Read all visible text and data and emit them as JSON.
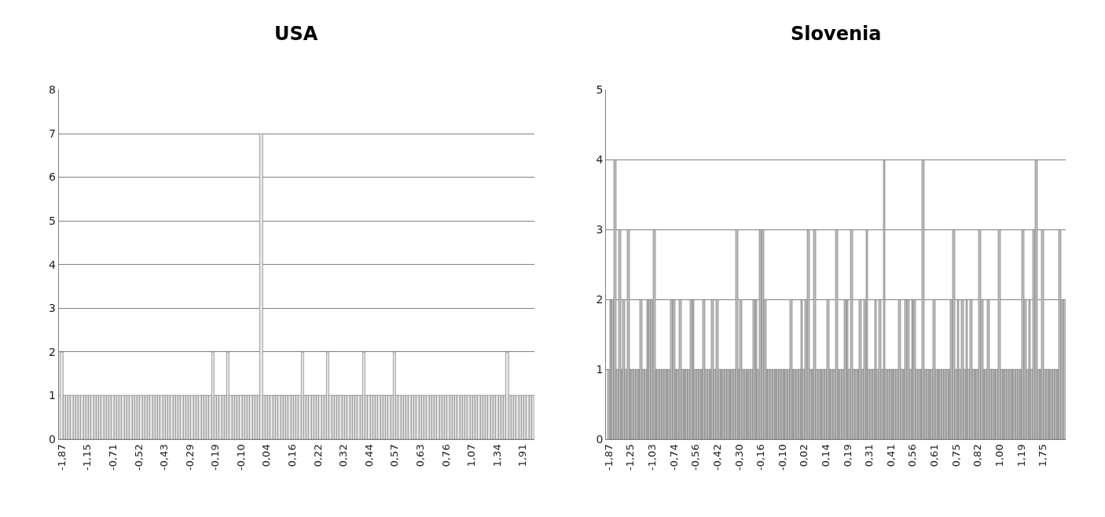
{
  "chart_data": [
    {
      "type": "bar",
      "title": "USA",
      "color": "#e6e6e6",
      "ylim": [
        0,
        8
      ],
      "yticks": [
        0,
        1,
        2,
        3,
        4,
        5,
        6,
        7,
        8
      ],
      "grid": "y",
      "categories": [
        "-1,87",
        null,
        null,
        null,
        null,
        null,
        null,
        null,
        null,
        null,
        "-1,15",
        null,
        null,
        null,
        null,
        null,
        null,
        null,
        null,
        null,
        "-0,71",
        null,
        null,
        null,
        null,
        null,
        null,
        null,
        null,
        null,
        "-0,52",
        null,
        null,
        null,
        null,
        null,
        null,
        null,
        null,
        null,
        "-0,43",
        null,
        null,
        null,
        null,
        null,
        null,
        null,
        null,
        null,
        "-0,29",
        null,
        null,
        null,
        null,
        null,
        null,
        null,
        null,
        null,
        "-0,19",
        null,
        null,
        null,
        null,
        null,
        null,
        null,
        null,
        null,
        "-0,10",
        null,
        null,
        null,
        null,
        null,
        null,
        null,
        null,
        null,
        "0,04",
        null,
        null,
        null,
        null,
        null,
        null,
        null,
        null,
        null,
        "0,16",
        null,
        null,
        null,
        null,
        null,
        null,
        null,
        null,
        null,
        "0,22",
        null,
        null,
        null,
        null,
        null,
        null,
        null,
        null,
        null,
        "0,32",
        null,
        null,
        null,
        null,
        null,
        null,
        null,
        null,
        null,
        "0,44",
        null,
        null,
        null,
        null,
        null,
        null,
        null,
        null,
        null,
        "0,57",
        null,
        null,
        null,
        null,
        null,
        null,
        null,
        null,
        null,
        "0,63",
        null,
        null,
        null,
        null,
        null,
        null,
        null,
        null,
        null,
        "0,76",
        null,
        null,
        null,
        null,
        null,
        null,
        null,
        null,
        null,
        "1,07",
        null,
        null,
        null,
        null,
        null,
        null,
        null,
        null,
        null,
        "1,34",
        null,
        null,
        null,
        null,
        null,
        null,
        null,
        null,
        null,
        "1,91",
        null,
        null,
        null,
        null
      ],
      "values": [
        2,
        1,
        1,
        1,
        1,
        1,
        1,
        1,
        1,
        1,
        1,
        1,
        1,
        1,
        1,
        1,
        1,
        1,
        1,
        1,
        1,
        1,
        1,
        1,
        1,
        1,
        1,
        1,
        1,
        1,
        1,
        1,
        1,
        1,
        1,
        1,
        1,
        1,
        1,
        1,
        1,
        1,
        1,
        1,
        1,
        1,
        1,
        1,
        1,
        1,
        1,
        1,
        1,
        1,
        1,
        1,
        1,
        1,
        1,
        2,
        1,
        1,
        1,
        1,
        1,
        2,
        1,
        1,
        1,
        1,
        1,
        1,
        1,
        1,
        1,
        1,
        1,
        1,
        7,
        1,
        1,
        1,
        1,
        1,
        1,
        1,
        1,
        1,
        1,
        1,
        1,
        1,
        1,
        1,
        2,
        1,
        1,
        1,
        1,
        1,
        1,
        1,
        1,
        1,
        2,
        1,
        1,
        1,
        1,
        1,
        1,
        1,
        1,
        1,
        1,
        1,
        1,
        1,
        2,
        1,
        1,
        1,
        1,
        1,
        1,
        1,
        1,
        1,
        1,
        1,
        2,
        1,
        1,
        1,
        1,
        1,
        1,
        1,
        1,
        1,
        1,
        1,
        1,
        1,
        1,
        1,
        1,
        1,
        1,
        1,
        1,
        1,
        1,
        1,
        1,
        1,
        1,
        1,
        1,
        1,
        1,
        1,
        1,
        1,
        1,
        1,
        1,
        1,
        1,
        1,
        1,
        1,
        1,
        1,
        2,
        1,
        1,
        1,
        1,
        1,
        1,
        1,
        1,
        1,
        1
      ]
    },
    {
      "type": "bar",
      "title": "Slovenia",
      "color": "#bfbfbf",
      "ylim": [
        0,
        5
      ],
      "yticks": [
        0,
        1,
        2,
        3,
        4,
        5
      ],
      "grid": "y",
      "categories": [
        "-1,87",
        null,
        null,
        null,
        null,
        null,
        null,
        null,
        null,
        null,
        "-1,25",
        null,
        null,
        null,
        null,
        null,
        null,
        null,
        null,
        null,
        "-1,03",
        null,
        null,
        null,
        null,
        null,
        null,
        null,
        null,
        null,
        "-0,74",
        null,
        null,
        null,
        null,
        null,
        null,
        null,
        null,
        null,
        "-0,56",
        null,
        null,
        null,
        null,
        null,
        null,
        null,
        null,
        null,
        "-0,42",
        null,
        null,
        null,
        null,
        null,
        null,
        null,
        null,
        null,
        "-0,30",
        null,
        null,
        null,
        null,
        null,
        null,
        null,
        null,
        null,
        "-0,16",
        null,
        null,
        null,
        null,
        null,
        null,
        null,
        null,
        null,
        "-0,10",
        null,
        null,
        null,
        null,
        null,
        null,
        null,
        null,
        null,
        "0,02",
        null,
        null,
        null,
        null,
        null,
        null,
        null,
        null,
        null,
        "0,14",
        null,
        null,
        null,
        null,
        null,
        null,
        null,
        null,
        null,
        "0,19",
        null,
        null,
        null,
        null,
        null,
        null,
        null,
        null,
        null,
        "0,31",
        null,
        null,
        null,
        null,
        null,
        null,
        null,
        null,
        null,
        "0,41",
        null,
        null,
        null,
        null,
        null,
        null,
        null,
        null,
        null,
        "0,56",
        null,
        null,
        null,
        null,
        null,
        null,
        null,
        null,
        null,
        "0,61",
        null,
        null,
        null,
        null,
        null,
        null,
        null,
        null,
        null,
        "0,75",
        null,
        null,
        null,
        null,
        null,
        null,
        null,
        null,
        null,
        "0,82",
        null,
        null,
        null,
        null,
        null,
        null,
        null,
        null,
        null,
        "1,00",
        null,
        null,
        null,
        null,
        null,
        null,
        null,
        null,
        null,
        "1,19",
        null,
        null,
        null,
        null,
        null,
        null,
        null,
        null,
        null,
        "1,75",
        null,
        null,
        null,
        null,
        null,
        null,
        null,
        null,
        null,
        null
      ],
      "values": [
        1,
        2,
        2,
        4,
        1,
        3,
        1,
        2,
        1,
        3,
        1,
        1,
        1,
        1,
        1,
        2,
        1,
        1,
        2,
        2,
        2,
        3,
        1,
        1,
        1,
        1,
        1,
        1,
        1,
        2,
        2,
        1,
        1,
        2,
        1,
        1,
        1,
        1,
        2,
        2,
        1,
        1,
        1,
        1,
        2,
        1,
        1,
        1,
        2,
        1,
        2,
        1,
        1,
        1,
        1,
        1,
        1,
        1,
        1,
        3,
        1,
        2,
        1,
        1,
        1,
        1,
        1,
        2,
        2,
        1,
        3,
        3,
        2,
        1,
        1,
        1,
        1,
        1,
        1,
        1,
        1,
        1,
        1,
        1,
        2,
        1,
        1,
        1,
        1,
        2,
        1,
        2,
        3,
        1,
        1,
        3,
        1,
        1,
        1,
        1,
        1,
        2,
        1,
        1,
        1,
        3,
        1,
        1,
        1,
        2,
        2,
        1,
        3,
        1,
        1,
        1,
        2,
        1,
        2,
        3,
        1,
        1,
        1,
        2,
        1,
        2,
        1,
        4,
        1,
        1,
        1,
        1,
        1,
        1,
        2,
        1,
        1,
        2,
        2,
        1,
        2,
        2,
        1,
        1,
        1,
        4,
        1,
        1,
        1,
        1,
        2,
        1,
        1,
        1,
        1,
        1,
        1,
        1,
        2,
        3,
        1,
        2,
        1,
        2,
        1,
        2,
        1,
        2,
        1,
        1,
        1,
        3,
        2,
        1,
        1,
        2,
        1,
        1,
        1,
        1,
        3,
        1,
        1,
        1,
        1,
        1,
        1,
        1,
        1,
        1,
        1,
        3,
        2,
        1,
        2,
        1,
        3,
        4,
        1,
        1,
        3,
        1,
        1,
        1,
        1,
        1,
        1,
        1,
        3,
        2,
        2
      ]
    }
  ]
}
